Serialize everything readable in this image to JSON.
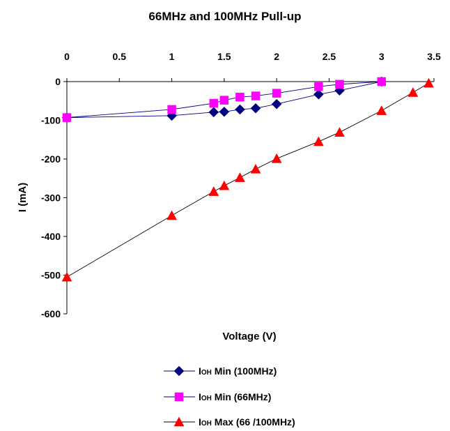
{
  "chart_data": {
    "type": "line",
    "title": "66MHz and 100MHz Pull-up",
    "xlabel": "Voltage (V)",
    "ylabel": "I (mA)",
    "xlim": [
      0,
      3.5
    ],
    "ylim": [
      -600,
      0
    ],
    "x_ticks": [
      0,
      0.5,
      1,
      1.5,
      2,
      2.5,
      3,
      3.5
    ],
    "x_tick_labels": [
      "0",
      "0.5",
      "1",
      "1.5",
      "2",
      "2.5",
      "3",
      "3.5"
    ],
    "y_ticks": [
      0,
      -100,
      -200,
      -300,
      -400,
      -500,
      -600
    ],
    "y_tick_labels": [
      "0",
      "-100",
      "-200",
      "-300",
      "-400",
      "-500",
      "-600"
    ],
    "x_axis_position": "top",
    "grid": false,
    "legend_position": "bottom",
    "series": [
      {
        "name_main": "I",
        "name_sub": "OH",
        "name_rest": " Min (100MHz)",
        "marker": "diamond",
        "color": "#000080",
        "x": [
          0,
          1,
          1.4,
          1.5,
          1.65,
          1.8,
          2,
          2.4,
          2.6,
          3
        ],
        "y": [
          -93,
          -88,
          -79,
          -78,
          -72,
          -69,
          -58,
          -33,
          -23,
          0
        ]
      },
      {
        "name_main": "I",
        "name_sub": "OH",
        "name_rest": " Min (66MHz)",
        "marker": "square",
        "color": "#FF00FF",
        "x": [
          0,
          1,
          1.4,
          1.5,
          1.65,
          1.8,
          2,
          2.4,
          2.6,
          3
        ],
        "y": [
          -93,
          -72,
          -56,
          -48,
          -40,
          -37,
          -30,
          -13,
          -7,
          0
        ]
      },
      {
        "name_main": "I",
        "name_sub": "OH",
        "name_rest": " Max (66 /100MHz)",
        "marker": "triangle",
        "color": "#FF0000",
        "x": [
          0,
          1,
          1.4,
          1.5,
          1.65,
          1.8,
          2,
          2.4,
          2.6,
          3,
          3.3,
          3.45
        ],
        "y": [
          -505,
          -346,
          -284,
          -269,
          -248,
          -226,
          -199,
          -155,
          -131,
          -75,
          -28,
          -4
        ]
      }
    ]
  }
}
